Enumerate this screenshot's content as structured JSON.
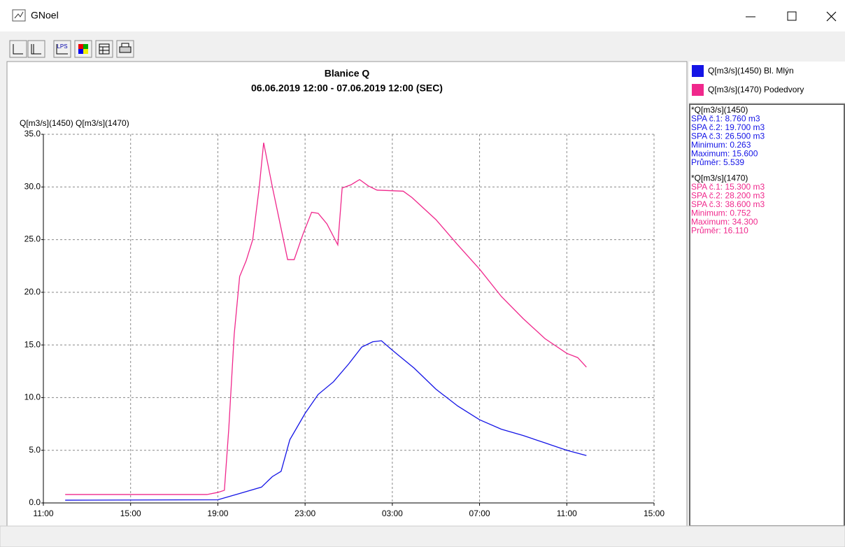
{
  "window": {
    "title": "GNoel"
  },
  "toolbar": {
    "lps_label": "LPS"
  },
  "chart_data": {
    "type": "line",
    "title": "Blanice Q",
    "subtitle": "06.06.2019 12:00 - 07.06.2019 12:00 (SEC)",
    "y_label": "Q[m3/s](1450) Q[m3/s](1470)",
    "xlim": [
      11,
      39
    ],
    "xticks": [
      {
        "value": 11,
        "label": "11:00"
      },
      {
        "value": 15,
        "label": "15:00"
      },
      {
        "value": 19,
        "label": "19:00"
      },
      {
        "value": 23,
        "label": "23:00"
      },
      {
        "value": 27,
        "label": "03:00"
      },
      {
        "value": 31,
        "label": "07:00"
      },
      {
        "value": 35,
        "label": "11:00"
      },
      {
        "value": 39,
        "label": "15:00"
      }
    ],
    "ylim": [
      0,
      35
    ],
    "yticks": [
      {
        "value": 0,
        "label": "0.0"
      },
      {
        "value": 5,
        "label": "5.0"
      },
      {
        "value": 10,
        "label": "10.0"
      },
      {
        "value": 15,
        "label": "15.0"
      },
      {
        "value": 20,
        "label": "20.0"
      },
      {
        "value": 25,
        "label": "25.0"
      },
      {
        "value": 30,
        "label": "30.0"
      },
      {
        "value": 35,
        "label": "35.0"
      }
    ],
    "grid": true,
    "series": [
      {
        "name": "Q[m3/s](1450) Bl. Mlýn",
        "color": "#1414e6",
        "x": [
          12,
          19,
          20,
          21,
          21.5,
          21.9,
          22.3,
          23,
          23.6,
          24.3,
          25,
          25.6,
          26.1,
          26.5,
          27,
          28,
          29,
          30,
          31,
          32,
          33,
          34,
          35,
          35.9
        ],
        "values": [
          0.26,
          0.3,
          0.9,
          1.5,
          2.5,
          3.0,
          6.0,
          8.5,
          10.3,
          11.5,
          13.2,
          14.8,
          15.3,
          15.4,
          14.5,
          12.8,
          10.8,
          9.2,
          7.9,
          7.0,
          6.4,
          5.7,
          5.0,
          4.5
        ]
      },
      {
        "name": "Q[m3/s](1470) Podedvory",
        "color": "#f0288c",
        "x": [
          12,
          18.5,
          19,
          19.3,
          19.5,
          19.75,
          20,
          20.3,
          20.6,
          20.9,
          21.1,
          21.5,
          22.2,
          22.5,
          22.9,
          23.3,
          23.6,
          24,
          24.5,
          24.7,
          25.1,
          25.5,
          25.9,
          26.3,
          27.5,
          27.9,
          29,
          30,
          31,
          32,
          33,
          34,
          35,
          35.5,
          35.9
        ],
        "values": [
          0.8,
          0.8,
          1.0,
          1.2,
          7.0,
          16.0,
          21.5,
          23.0,
          25.0,
          30.0,
          34.2,
          30.0,
          23.1,
          23.1,
          25.5,
          27.6,
          27.5,
          26.5,
          24.5,
          29.9,
          30.2,
          30.7,
          30.1,
          29.7,
          29.6,
          29.0,
          26.9,
          24.5,
          22.2,
          19.6,
          17.5,
          15.6,
          14.2,
          13.8,
          12.9
        ]
      }
    ]
  },
  "stats": [
    {
      "header": "*Q[m3/s](1450)",
      "color": "#1414e6",
      "lines": [
        "SPA č.1: 8.760 m3",
        "SPA č.2: 19.700 m3",
        "SPA č.3: 26.500 m3",
        "Minimum: 0.263",
        "Maximum: 15.600",
        "Průměr: 5.539"
      ]
    },
    {
      "header": "*Q[m3/s](1470)",
      "color": "#f0288c",
      "lines": [
        "SPA č.1: 15.300 m3",
        "SPA č.2: 28.200 m3",
        "SPA č.3: 38.600 m3",
        "Minimum: 0.752",
        "Maximum: 34.300",
        "Průměr: 16.110"
      ]
    }
  ]
}
